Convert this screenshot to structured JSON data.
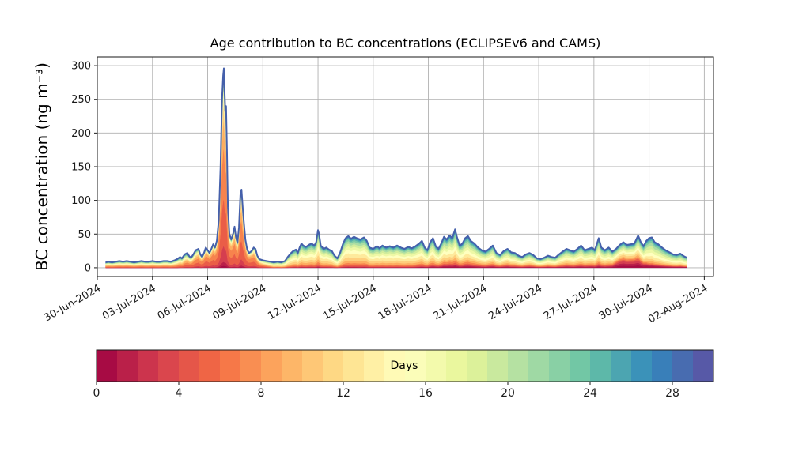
{
  "chart_data": {
    "type": "stacked-area",
    "title": "Age contribution to BC concentrations (ECLIPSEv6 and CAMS)",
    "ylabel": "BC concentration (ng m⁻³)",
    "grid": true,
    "xlim_days": [
      0,
      33.5
    ],
    "ylim": [
      -13,
      313
    ],
    "x_tick_days": [
      0,
      3,
      6,
      9,
      12,
      15,
      18,
      21,
      24,
      27,
      30,
      33
    ],
    "x_tick_labels": [
      "30-Jun-2024",
      "03-Jul-2024",
      "06-Jul-2024",
      "09-Jul-2024",
      "12-Jul-2024",
      "15-Jul-2024",
      "18-Jul-2024",
      "21-Jul-2024",
      "24-Jul-2024",
      "27-Jul-2024",
      "30-Jul-2024",
      "02-Aug-2024"
    ],
    "y_ticks": [
      0,
      50,
      100,
      150,
      200,
      250,
      300
    ],
    "envelope_color": "#4560ab",
    "grid_color": "#b0b0b0",
    "colormap_anchors": [
      "#9e0142",
      "#d53e4f",
      "#f46d43",
      "#fdae61",
      "#fee08b",
      "#ffffbf",
      "#e6f598",
      "#abdda4",
      "#66c2a5",
      "#3288bd",
      "#5e4fa2"
    ],
    "colorbar": {
      "label": "Days",
      "min": 0,
      "max": 30,
      "bins": 30,
      "ticks": [
        0,
        4,
        8,
        12,
        16,
        20,
        24,
        28
      ]
    },
    "age_band_edges_days": [
      0,
      1,
      2,
      4,
      6,
      8,
      10,
      12,
      14,
      16,
      18,
      20,
      22,
      24,
      26,
      28,
      30
    ],
    "age_profiles": [
      {
        "t": 0.45,
        "w": [
          0.005,
          0.01,
          0.03,
          0.09,
          0.13,
          0.12,
          0.1,
          0.09,
          0.08,
          0.07,
          0.07,
          0.06,
          0.05,
          0.04,
          0.04,
          0.035
        ]
      },
      {
        "t": 4.4,
        "w": [
          0.005,
          0.01,
          0.03,
          0.09,
          0.13,
          0.12,
          0.1,
          0.09,
          0.08,
          0.07,
          0.07,
          0.06,
          0.05,
          0.04,
          0.04,
          0.035
        ]
      },
      {
        "t": 6.0,
        "w": [
          0.01,
          0.02,
          0.08,
          0.24,
          0.26,
          0.14,
          0.07,
          0.04,
          0.03,
          0.025,
          0.02,
          0.02,
          0.015,
          0.015,
          0.01,
          0.015
        ]
      },
      {
        "t": 8.3,
        "w": [
          0.01,
          0.02,
          0.08,
          0.24,
          0.26,
          0.14,
          0.07,
          0.04,
          0.03,
          0.025,
          0.02,
          0.02,
          0.015,
          0.015,
          0.01,
          0.015
        ]
      },
      {
        "t": 9.6,
        "w": [
          0.01,
          0.015,
          0.025,
          0.05,
          0.06,
          0.08,
          0.11,
          0.13,
          0.12,
          0.11,
          0.09,
          0.08,
          0.06,
          0.05,
          0.03,
          0.02
        ]
      },
      {
        "t": 17.0,
        "w": [
          0.01,
          0.015,
          0.025,
          0.05,
          0.06,
          0.08,
          0.11,
          0.13,
          0.12,
          0.11,
          0.09,
          0.08,
          0.06,
          0.05,
          0.03,
          0.02
        ]
      },
      {
        "t": 19.0,
        "w": [
          0.035,
          0.03,
          0.03,
          0.05,
          0.06,
          0.07,
          0.09,
          0.11,
          0.12,
          0.11,
          0.1,
          0.08,
          0.06,
          0.05,
          0.035,
          0.03
        ]
      },
      {
        "t": 27.9,
        "w": [
          0.035,
          0.03,
          0.03,
          0.05,
          0.06,
          0.07,
          0.09,
          0.11,
          0.12,
          0.11,
          0.1,
          0.08,
          0.06,
          0.05,
          0.035,
          0.03
        ]
      },
      {
        "t": 28.3,
        "w": [
          0.09,
          0.1,
          0.09,
          0.07,
          0.06,
          0.07,
          0.08,
          0.09,
          0.09,
          0.08,
          0.07,
          0.06,
          0.05,
          0.04,
          0.03,
          0.025
        ]
      },
      {
        "t": 29.3,
        "w": [
          0.09,
          0.1,
          0.09,
          0.07,
          0.06,
          0.07,
          0.08,
          0.09,
          0.09,
          0.08,
          0.07,
          0.06,
          0.05,
          0.04,
          0.03,
          0.025
        ]
      },
      {
        "t": 30.0,
        "w": [
          0.05,
          0.03,
          0.025,
          0.03,
          0.04,
          0.06,
          0.08,
          0.1,
          0.12,
          0.12,
          0.11,
          0.1,
          0.08,
          0.05,
          0.035,
          0.025
        ]
      },
      {
        "t": 32.05,
        "w": [
          0.05,
          0.03,
          0.025,
          0.03,
          0.04,
          0.06,
          0.08,
          0.1,
          0.12,
          0.12,
          0.11,
          0.1,
          0.08,
          0.05,
          0.035,
          0.025
        ]
      }
    ],
    "total_series_day_value": [
      [
        0.45,
        8
      ],
      [
        0.6,
        9
      ],
      [
        0.8,
        8
      ],
      [
        1,
        9
      ],
      [
        1.2,
        10
      ],
      [
        1.4,
        9
      ],
      [
        1.6,
        10
      ],
      [
        1.8,
        9
      ],
      [
        2,
        8
      ],
      [
        2.2,
        9
      ],
      [
        2.4,
        10
      ],
      [
        2.6,
        9
      ],
      [
        2.8,
        9
      ],
      [
        3,
        10
      ],
      [
        3.2,
        9
      ],
      [
        3.4,
        9
      ],
      [
        3.6,
        10
      ],
      [
        3.8,
        10
      ],
      [
        4,
        9
      ],
      [
        4.2,
        11
      ],
      [
        4.35,
        13
      ],
      [
        4.5,
        16
      ],
      [
        4.6,
        14
      ],
      [
        4.75,
        20
      ],
      [
        4.9,
        22
      ],
      [
        5,
        17
      ],
      [
        5.1,
        15
      ],
      [
        5.2,
        19
      ],
      [
        5.35,
        26
      ],
      [
        5.5,
        28
      ],
      [
        5.6,
        20
      ],
      [
        5.7,
        16
      ],
      [
        5.8,
        22
      ],
      [
        5.9,
        30
      ],
      [
        6,
        26
      ],
      [
        6.1,
        22
      ],
      [
        6.2,
        28
      ],
      [
        6.3,
        35
      ],
      [
        6.4,
        30
      ],
      [
        6.5,
        40
      ],
      [
        6.6,
        70
      ],
      [
        6.7,
        150
      ],
      [
        6.78,
        250
      ],
      [
        6.84,
        285
      ],
      [
        6.88,
        296
      ],
      [
        6.92,
        262
      ],
      [
        6.96,
        232
      ],
      [
        7,
        240
      ],
      [
        7.05,
        175
      ],
      [
        7.1,
        90
      ],
      [
        7.18,
        50
      ],
      [
        7.28,
        42
      ],
      [
        7.38,
        50
      ],
      [
        7.46,
        61
      ],
      [
        7.54,
        45
      ],
      [
        7.62,
        37
      ],
      [
        7.7,
        60
      ],
      [
        7.78,
        108
      ],
      [
        7.84,
        116
      ],
      [
        7.9,
        92
      ],
      [
        7.96,
        70
      ],
      [
        8.05,
        42
      ],
      [
        8.15,
        27
      ],
      [
        8.25,
        22
      ],
      [
        8.4,
        25
      ],
      [
        8.5,
        30
      ],
      [
        8.6,
        28
      ],
      [
        8.7,
        18
      ],
      [
        8.8,
        13
      ],
      [
        9,
        11
      ],
      [
        9.2,
        10
      ],
      [
        9.4,
        9
      ],
      [
        9.6,
        8
      ],
      [
        9.8,
        9
      ],
      [
        10,
        8
      ],
      [
        10.2,
        10
      ],
      [
        10.35,
        16
      ],
      [
        10.5,
        21
      ],
      [
        10.65,
        25
      ],
      [
        10.8,
        27
      ],
      [
        10.9,
        22
      ],
      [
        11,
        30
      ],
      [
        11.1,
        36
      ],
      [
        11.2,
        33
      ],
      [
        11.35,
        31
      ],
      [
        11.5,
        34
      ],
      [
        11.65,
        36
      ],
      [
        11.8,
        33
      ],
      [
        11.9,
        38
      ],
      [
        12,
        56
      ],
      [
        12.06,
        50
      ],
      [
        12.15,
        33
      ],
      [
        12.3,
        28
      ],
      [
        12.45,
        30
      ],
      [
        12.6,
        27
      ],
      [
        12.75,
        25
      ],
      [
        12.9,
        18
      ],
      [
        13.05,
        14
      ],
      [
        13.2,
        22
      ],
      [
        13.35,
        35
      ],
      [
        13.5,
        44
      ],
      [
        13.65,
        47
      ],
      [
        13.8,
        43
      ],
      [
        13.95,
        46
      ],
      [
        14.1,
        44
      ],
      [
        14.3,
        42
      ],
      [
        14.5,
        45
      ],
      [
        14.65,
        40
      ],
      [
        14.8,
        30
      ],
      [
        15,
        28
      ],
      [
        15.2,
        32
      ],
      [
        15.35,
        29
      ],
      [
        15.5,
        33
      ],
      [
        15.7,
        30
      ],
      [
        15.9,
        32
      ],
      [
        16.1,
        30
      ],
      [
        16.3,
        33
      ],
      [
        16.5,
        30
      ],
      [
        16.7,
        28
      ],
      [
        16.9,
        31
      ],
      [
        17.1,
        29
      ],
      [
        17.3,
        32
      ],
      [
        17.5,
        36
      ],
      [
        17.65,
        40
      ],
      [
        17.8,
        30
      ],
      [
        17.95,
        26
      ],
      [
        18.1,
        38
      ],
      [
        18.25,
        44
      ],
      [
        18.4,
        32
      ],
      [
        18.55,
        28
      ],
      [
        18.7,
        36
      ],
      [
        18.85,
        46
      ],
      [
        19,
        42
      ],
      [
        19.15,
        48
      ],
      [
        19.3,
        44
      ],
      [
        19.45,
        57
      ],
      [
        19.55,
        46
      ],
      [
        19.7,
        33
      ],
      [
        19.85,
        36
      ],
      [
        20,
        44
      ],
      [
        20.15,
        47
      ],
      [
        20.3,
        40
      ],
      [
        20.5,
        36
      ],
      [
        20.7,
        30
      ],
      [
        20.9,
        26
      ],
      [
        21.1,
        24
      ],
      [
        21.3,
        28
      ],
      [
        21.5,
        33
      ],
      [
        21.7,
        22
      ],
      [
        21.9,
        19
      ],
      [
        22.1,
        25
      ],
      [
        22.3,
        28
      ],
      [
        22.5,
        23
      ],
      [
        22.7,
        22
      ],
      [
        22.9,
        18
      ],
      [
        23.1,
        16
      ],
      [
        23.3,
        20
      ],
      [
        23.5,
        22
      ],
      [
        23.7,
        19
      ],
      [
        23.9,
        14
      ],
      [
        24.1,
        13
      ],
      [
        24.3,
        15
      ],
      [
        24.5,
        18
      ],
      [
        24.7,
        16
      ],
      [
        24.9,
        15
      ],
      [
        25.1,
        20
      ],
      [
        25.3,
        24
      ],
      [
        25.5,
        28
      ],
      [
        25.7,
        26
      ],
      [
        25.9,
        24
      ],
      [
        26.1,
        28
      ],
      [
        26.3,
        33
      ],
      [
        26.5,
        26
      ],
      [
        26.7,
        28
      ],
      [
        26.9,
        30
      ],
      [
        27.05,
        26
      ],
      [
        27.26,
        44
      ],
      [
        27.4,
        30
      ],
      [
        27.6,
        26
      ],
      [
        27.8,
        30
      ],
      [
        28,
        24
      ],
      [
        28.2,
        28
      ],
      [
        28.4,
        34
      ],
      [
        28.6,
        38
      ],
      [
        28.8,
        34
      ],
      [
        29,
        35
      ],
      [
        29.2,
        36
      ],
      [
        29.4,
        48
      ],
      [
        29.55,
        38
      ],
      [
        29.7,
        32
      ],
      [
        29.85,
        40
      ],
      [
        30,
        44
      ],
      [
        30.15,
        45
      ],
      [
        30.3,
        38
      ],
      [
        30.5,
        35
      ],
      [
        30.7,
        30
      ],
      [
        30.9,
        26
      ],
      [
        31.1,
        23
      ],
      [
        31.3,
        20
      ],
      [
        31.5,
        19
      ],
      [
        31.7,
        21
      ],
      [
        31.9,
        17
      ],
      [
        32.05,
        15
      ]
    ]
  }
}
